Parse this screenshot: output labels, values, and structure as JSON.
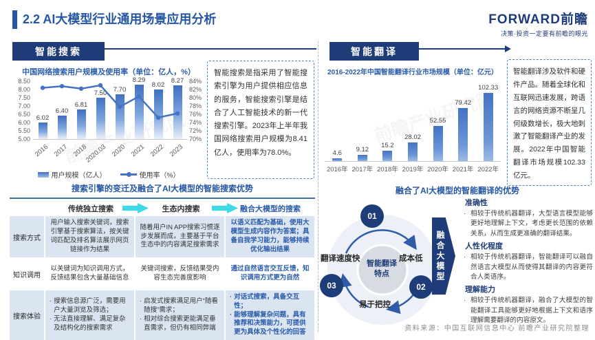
{
  "header": {
    "title": "2.2 AI大模型行业通用场景应用分析",
    "brand": "FORWARD前瞻",
    "tagline": "决策·投资一定要有前瞻的眼光"
  },
  "left": {
    "banner": "智能搜索",
    "note": "智能搜索是指采用了智能搜索引擎为用户提供相应信息的服务，智能搜索引擎是结合了人工智能技术的新一代搜索引擎。2023年上半年我国网络搜索用户规模为8.41亿人，使用率为78.0%。",
    "table": {
      "title": "搜索引擎的变迁及融合了AI大模型的智能搜索优势",
      "row_header": [
        "传统独立搜索",
        "生态内搜索",
        "融合大模型的搜索"
      ],
      "rows": [
        {
          "label": "搜索方式",
          "cells": [
            [
              "用户输入搜索关键词，搜索引擎基于搜索算法，按关键词匹配及排名算法展示网页链接作为结果"
            ],
            [
              "随着用户IN APP搜索习惯逐步发展而成，主要基于平台生态中的内容满足搜索需求"
            ],
            [
              "以语义匹配为基础，使用大模型生成内容作为答案；具备自我学习能力，能够持续优化输出结果"
            ]
          ]
        },
        {
          "label": "知识调用",
          "cells": [
            [
              "以关键词为知识调用方式，反馈结果包含大量基础信息"
            ],
            [
              "关键词搜索，反馈结果受内容生态完善度影响"
            ],
            [
              "通过自然语言交互反馈，知识调用方式更为自然"
            ]
          ]
        },
        {
          "label": "搜索体验",
          "cells": [
            [
              "搜索信息源广泛，需要用户大量浏览及筛选；",
              "无法直接理解、满足复杂及结构化的搜索需求"
            ],
            [
              "启发式搜索满足用户“随看随搜”需求；",
              "相对综合搜索更能满足垂直需求，但仍有相同弊端"
            ],
            [
              "对话式搜索，具备交互性；",
              "能够理解复杂问题，具有推荐和决策能力，可提供更为具体及个性化的回答"
            ]
          ]
        }
      ]
    }
  },
  "right": {
    "banner": "智能翻译",
    "note": "智能翻译涉及软件和硬件产品。随着全球化和互联网迅速发展，跨语言的网络资源不断呈几何级数增长，极大地刺激了智能翻译产业的发展。2022年中国智能翻译市场规模102.33亿元。",
    "adv_title": "融合了AI大模型的智能翻译的优势",
    "cycle": {
      "center": "智能翻译特点",
      "nums": [
        "01",
        "02",
        "03"
      ],
      "labels": [
        "翻译速度快",
        "成本低",
        "易于把控"
      ],
      "arrow": "融合大模型"
    },
    "advantages": [
      {
        "heading": "准确性",
        "text": "相较于传统机器翻译，大型语言模型能够更好地理解上下文，考虑更长范围的依赖关系，从而生成更准确的翻译结果。"
      },
      {
        "heading": "人性化程度",
        "text": "相较于传统机器翻译，智能翻译可以融自然语言大模型从而使得其翻译的内容更符合人类语序。"
      },
      {
        "heading": "理解能力",
        "text": "相较于传统机器翻译，融合了大模型的智能翻译工具能够更好地根据上下文和语序理解需要翻译的内容原文。"
      }
    ]
  },
  "source": "资料来源：中国互联网信息中心 前瞻产业研究院整理",
  "watermark": "前瞻产业研究院",
  "chart_data": [
    {
      "type": "bar",
      "title": "中国网络搜索用户规模及使用率（单位：亿人，%）",
      "categories": [
        "2016",
        "2017",
        "2018",
        "2020.03",
        "2020",
        "2021",
        "2022",
        "2023"
      ],
      "series": [
        {
          "name": "用户规模（亿人）",
          "type": "bar",
          "values": [
            6.02,
            6.4,
            6.81,
            7.5,
            7.7,
            8.29,
            8.02,
            8.27
          ],
          "labels": [
            "6.02",
            "6.40",
            "6.81",
            "7.50",
            "7.70",
            "8.29",
            "8.02",
            "8.27"
          ]
        },
        {
          "name": "使用率（%）",
          "type": "line",
          "values": [
            82.4,
            82.8,
            82.2,
            83.0,
            77.8,
            80.3,
            75.2,
            76.2
          ]
        }
      ],
      "y_left": {
        "ticks": [
          "8.50",
          "8.00",
          "7.50",
          "7.00",
          "6.50",
          "6.00",
          "5.50",
          "5.00"
        ],
        "min": 5.0,
        "max": 8.5
      },
      "y_right": {
        "ticks": [
          "84%",
          "82%",
          "80%",
          "78%",
          "76%",
          "74%",
          "72%",
          "70%"
        ],
        "min": 70,
        "max": 84
      },
      "legend_position": "bottom",
      "grid": false
    },
    {
      "type": "bar",
      "title": "2016-2022年中国智能翻译行业市场规模（单位：亿元）",
      "categories": [
        "2016年",
        "2017年",
        "2018年",
        "2019年",
        "2020年",
        "2021年",
        "2022年"
      ],
      "values": [
        4.6,
        9.12,
        15.2,
        28.02,
        52.55,
        79.42,
        102.33
      ],
      "labels": [
        "4.6",
        "9.12",
        "15.2",
        "28.02",
        "52.55",
        "79.42",
        "102.33"
      ],
      "ylim": [
        0,
        105
      ],
      "grid": false
    }
  ]
}
